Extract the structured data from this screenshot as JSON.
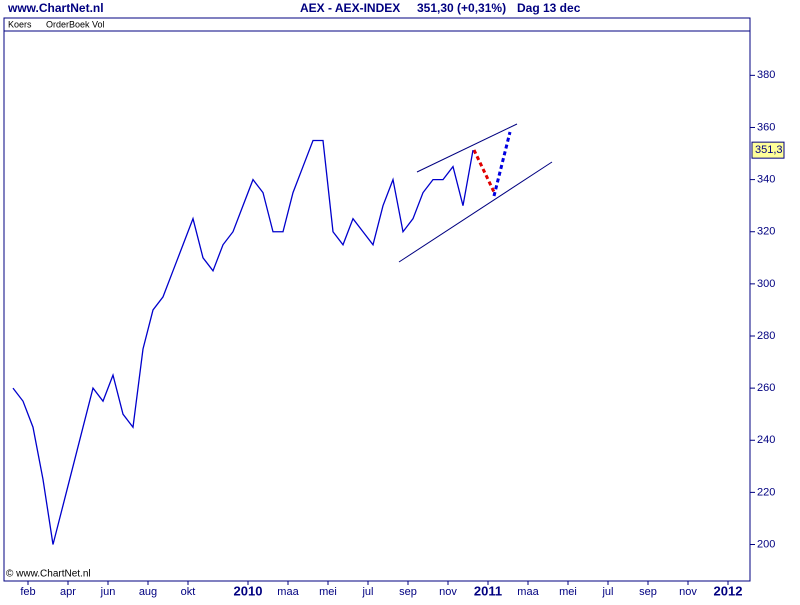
{
  "header": {
    "site": "www.ChartNet.nl",
    "instrument": "AEX - AEX-INDEX",
    "quote": "351,30 (+0,31%)",
    "period": "Dag  13 dec"
  },
  "tabs": [
    "Koers",
    "OrderBoek Vol"
  ],
  "copyright": "© www.ChartNet.nl",
  "chart_data": {
    "type": "line",
    "categories": [
      null,
      null,
      "feb",
      null,
      null,
      null,
      "apr",
      null,
      null,
      null,
      "jun",
      null,
      null,
      null,
      "aug",
      null,
      null,
      null,
      "okt",
      null,
      null,
      null,
      null,
      null,
      "2010",
      null,
      null,
      null,
      "maa",
      null,
      null,
      null,
      "mei",
      null,
      null,
      null,
      "jul",
      null,
      null,
      null,
      "sep",
      null,
      null,
      null,
      "nov",
      null,
      null,
      null,
      "2011",
      null,
      null,
      null,
      "maa",
      null,
      null,
      null,
      "mei",
      null,
      null,
      null,
      "jul",
      null,
      null,
      null,
      "sep",
      null,
      null,
      null,
      "nov",
      null,
      null,
      null,
      "2012",
      null
    ],
    "series": [
      {
        "name": "AEX",
        "color": "#0000cc",
        "values": [
          260,
          255,
          245,
          225,
          200,
          215,
          230,
          245,
          260,
          255,
          265,
          250,
          245,
          275,
          290,
          295,
          305,
          315,
          325,
          310,
          305,
          315,
          320,
          330,
          340,
          335,
          320,
          320,
          335,
          345,
          355,
          355,
          320,
          315,
          325,
          320,
          315,
          330,
          340,
          320,
          325,
          335,
          340,
          340,
          345,
          330,
          351.3,
          null,
          null,
          null,
          null,
          null,
          null,
          null,
          null,
          null,
          null,
          null,
          null,
          null,
          null,
          null,
          null,
          null,
          null,
          null,
          null,
          null,
          null,
          null,
          null,
          null,
          null,
          null
        ]
      }
    ],
    "price_label": "351,3",
    "ylim": [
      186,
      402
    ],
    "yticks": [
      200,
      220,
      240,
      260,
      280,
      300,
      320,
      340,
      360,
      380
    ]
  }
}
